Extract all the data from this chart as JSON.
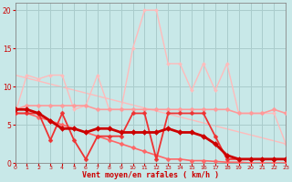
{
  "background_color": "#c8e8e8",
  "grid_color": "#aacccc",
  "xlabel": "Vent moyen/en rafales ( km/h )",
  "xlim": [
    0,
    23
  ],
  "ylim": [
    0,
    21
  ],
  "yticks": [
    0,
    5,
    10,
    15,
    20
  ],
  "xticks": [
    0,
    1,
    2,
    3,
    4,
    5,
    6,
    7,
    8,
    9,
    10,
    11,
    12,
    13,
    14,
    15,
    16,
    17,
    18,
    19,
    20,
    21,
    22,
    23
  ],
  "tick_color": "#cc0000",
  "xlabel_color": "#cc0000",
  "series": [
    {
      "name": "diagonal_light_pink",
      "x": [
        0,
        23
      ],
      "y": [
        11.5,
        2.5
      ],
      "color": "#ffbbbb",
      "linewidth": 1.0,
      "marker": null,
      "linestyle": "-",
      "zorder": 1
    },
    {
      "name": "jagged_light_pink_high",
      "x": [
        0,
        1,
        2,
        3,
        4,
        5,
        6,
        7,
        8,
        9,
        10,
        11,
        12,
        13,
        14,
        15,
        16,
        17,
        18,
        19,
        20,
        21,
        22,
        23
      ],
      "y": [
        6.5,
        11.5,
        11.0,
        11.5,
        11.5,
        7.0,
        7.5,
        11.5,
        7.0,
        7.0,
        15.0,
        20.0,
        20.0,
        13.0,
        13.0,
        9.5,
        13.0,
        9.5,
        13.0,
        6.5,
        6.5,
        6.5,
        6.5,
        2.5
      ],
      "color": "#ffbbbb",
      "linewidth": 1.0,
      "marker": "D",
      "markersize": 2.0,
      "linestyle": "-",
      "zorder": 2
    },
    {
      "name": "flat_medium_pink",
      "x": [
        0,
        1,
        2,
        3,
        4,
        5,
        6,
        7,
        8,
        9,
        10,
        11,
        12,
        13,
        14,
        15,
        16,
        17,
        18,
        19,
        20,
        21,
        22,
        23
      ],
      "y": [
        7.0,
        7.5,
        7.5,
        7.5,
        7.5,
        7.5,
        7.5,
        7.0,
        7.0,
        7.0,
        7.0,
        7.0,
        7.0,
        7.0,
        7.0,
        7.0,
        7.0,
        7.0,
        7.0,
        6.5,
        6.5,
        6.5,
        7.0,
        6.5
      ],
      "color": "#ff9999",
      "linewidth": 1.2,
      "marker": "D",
      "markersize": 2.5,
      "linestyle": "-",
      "zorder": 3
    },
    {
      "name": "decreasing_red",
      "x": [
        0,
        1,
        2,
        3,
        4,
        5,
        6,
        7,
        8,
        9,
        10,
        11,
        12,
        13,
        14,
        15,
        16,
        17,
        18,
        19,
        20,
        21,
        22,
        23
      ],
      "y": [
        6.5,
        6.5,
        6.0,
        5.5,
        5.0,
        4.5,
        4.0,
        3.5,
        3.0,
        2.5,
        2.0,
        1.5,
        1.0,
        0.5,
        0.5,
        0.3,
        0.3,
        0.2,
        0.1,
        0.1,
        0.0,
        0.0,
        0.0,
        0.0
      ],
      "color": "#ff6666",
      "linewidth": 1.2,
      "marker": "D",
      "markersize": 2.5,
      "linestyle": "-",
      "zorder": 4
    },
    {
      "name": "zigzag_medium_red",
      "x": [
        0,
        1,
        2,
        3,
        4,
        5,
        6,
        7,
        8,
        9,
        10,
        11,
        12,
        13,
        14,
        15,
        16,
        17,
        18,
        19,
        20,
        21,
        22,
        23
      ],
      "y": [
        6.5,
        6.5,
        6.5,
        3.0,
        6.5,
        3.0,
        0.5,
        3.5,
        3.5,
        3.5,
        6.5,
        6.5,
        0.5,
        6.5,
        6.5,
        6.5,
        6.5,
        3.5,
        0.5,
        0.5,
        0.5,
        0.5,
        0.5,
        0.5
      ],
      "color": "#ee3333",
      "linewidth": 1.3,
      "marker": "D",
      "markersize": 2.5,
      "linestyle": "-",
      "zorder": 5
    },
    {
      "name": "main_thick_dark_red",
      "x": [
        0,
        1,
        2,
        3,
        4,
        5,
        6,
        7,
        8,
        9,
        10,
        11,
        12,
        13,
        14,
        15,
        16,
        17,
        18,
        19,
        20,
        21,
        22,
        23
      ],
      "y": [
        7.0,
        7.0,
        6.5,
        5.5,
        4.5,
        4.5,
        4.0,
        4.5,
        4.5,
        4.0,
        4.0,
        4.0,
        4.0,
        4.5,
        4.0,
        4.0,
        3.5,
        2.5,
        1.0,
        0.5,
        0.5,
        0.5,
        0.5,
        0.5
      ],
      "color": "#cc0000",
      "linewidth": 2.0,
      "marker": "D",
      "markersize": 3.0,
      "linestyle": "-",
      "zorder": 6
    }
  ]
}
